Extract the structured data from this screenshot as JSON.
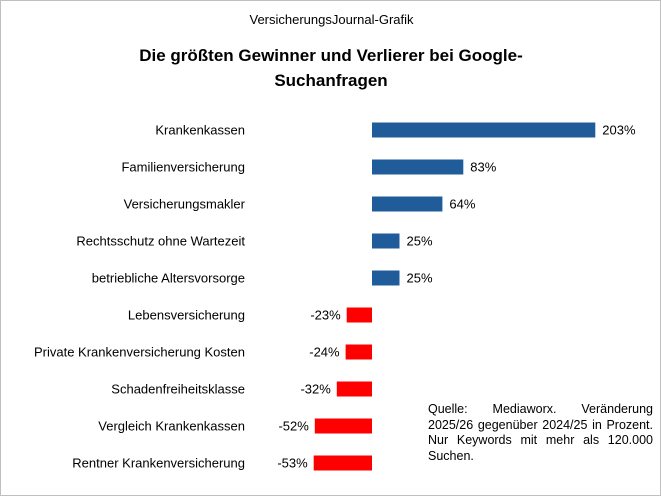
{
  "header": {
    "kicker": "VersicherungsJournal-Grafik",
    "title": "Die größten Gewinner und Verlierer bei Google-Suchanfragen"
  },
  "note": "Quelle: Mediaworx. Veränderung 2025/26 gegenüber 2024/25 in Prozent. Nur Keywords mit mehr als 120.000 Suchen.",
  "colors": {
    "positive": "#1F5C99",
    "negative": "#FF0000"
  },
  "chart_data": {
    "type": "bar",
    "orientation": "horizontal",
    "title": "Die größten Gewinner und Verlierer bei Google-Suchanfragen",
    "xlabel": "",
    "ylabel": "",
    "unit": "%",
    "grid": false,
    "xlim": [
      -60,
      215
    ],
    "categories": [
      "Krankenkassen",
      "Familienversicherung",
      "Versicherungsmakler",
      "Rechtsschutz ohne Wartezeit",
      "betriebliche Altersvorsorge",
      "Lebensversicherung",
      "Private Krankenversicherung Kosten",
      "Schadenfreiheitsklasse",
      "Vergleich Krankenkassen",
      "Rentner Krankenversicherung"
    ],
    "values": [
      203,
      83,
      64,
      25,
      25,
      -23,
      -24,
      -32,
      -52,
      -53
    ],
    "data_labels": [
      "203%",
      "83%",
      "64%",
      "25%",
      "25%",
      "-23%",
      "-24%",
      "-32%",
      "-52%",
      "-53%"
    ]
  }
}
